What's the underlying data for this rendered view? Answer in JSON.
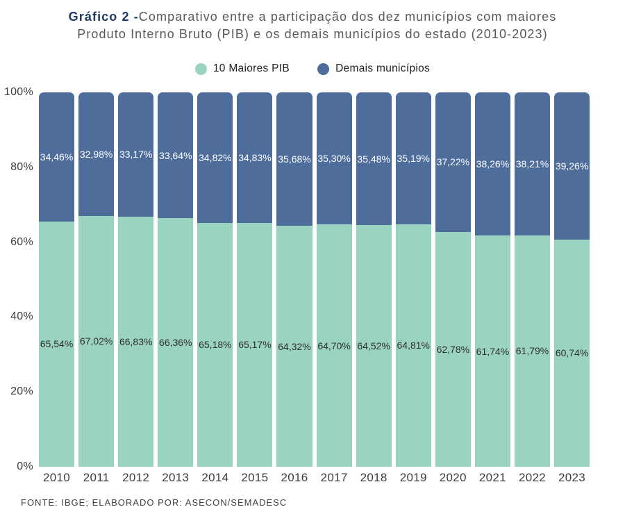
{
  "title": {
    "prefix": "Gráfico 2 -",
    "line1": "Comparativo entre a participação dos dez municípios com maiores",
    "line2": "Produto Interno Bruto (PIB) e os demais municípios do estado (2010-2023)"
  },
  "footer": "FONTE: IBGE; ELABORADO POR: ASECON/SEMADESC",
  "colors": {
    "green": "#9ad3bf",
    "blue": "#4e6d9b",
    "title_accent": "#1f3864",
    "title_text": "#595959",
    "axis_text": "#3d3d3d"
  },
  "chart_data": {
    "type": "bar",
    "stacked": true,
    "legend_position": "top",
    "grid": false,
    "ylim": [
      0,
      100
    ],
    "y_ticks": [
      "100%",
      "80%",
      "60%",
      "40%",
      "20%",
      "0%"
    ],
    "categories": [
      "2010",
      "2011",
      "2012",
      "2013",
      "2014",
      "2015",
      "2016",
      "2017",
      "2018",
      "2019",
      "2020",
      "2021",
      "2022",
      "2023"
    ],
    "series": [
      {
        "name": "10 Maiores PIB",
        "color": "#9ad3bf",
        "values": [
          65.54,
          67.02,
          66.83,
          66.36,
          65.18,
          65.17,
          64.32,
          64.7,
          64.52,
          64.81,
          62.78,
          61.74,
          61.79,
          60.74
        ],
        "labels": [
          "65,54%",
          "67,02%",
          "66,83%",
          "66,36%",
          "65,18%",
          "65,17%",
          "64,32%",
          "64,70%",
          "64,52%",
          "64,81%",
          "62,78%",
          "61,74%",
          "61,79%",
          "60,74%"
        ]
      },
      {
        "name": "Demais municípios",
        "color": "#4e6d9b",
        "values": [
          34.46,
          32.98,
          33.17,
          33.64,
          34.82,
          34.83,
          35.68,
          35.3,
          35.48,
          35.19,
          37.22,
          38.26,
          38.21,
          39.26
        ],
        "labels": [
          "34,46%",
          "32,98%",
          "33,17%",
          "33,64%",
          "34,82%",
          "34,83%",
          "35,68%",
          "35,30%",
          "35,48%",
          "35,19%",
          "37,22%",
          "38,26%",
          "38,21%",
          "39,26%"
        ]
      }
    ]
  }
}
